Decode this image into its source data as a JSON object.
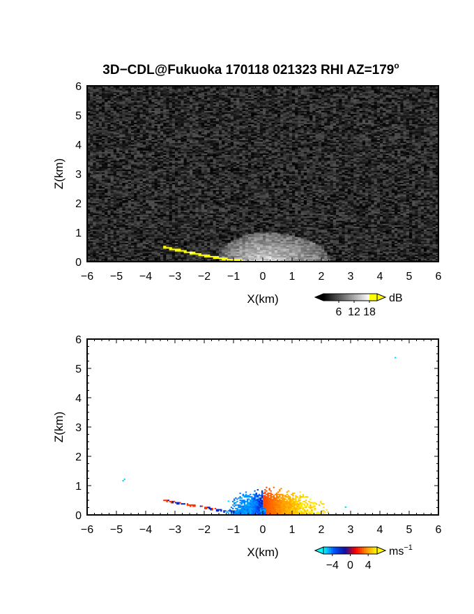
{
  "figure": {
    "title": "3D−CDL@Fukuoka 170118 021323 RHI AZ=179",
    "title_superscript": "o"
  },
  "chart_data": [
    {
      "type": "heatmap",
      "panel": "top",
      "variable": "backscatter",
      "xlabel": "X(km)",
      "ylabel": "Z(km)",
      "xlim": [
        -6,
        6
      ],
      "ylim": [
        0,
        6
      ],
      "xticks": [
        "−6",
        "−5",
        "−4",
        "−3",
        "−2",
        "−1",
        "0",
        "1",
        "2",
        "3",
        "4",
        "5",
        "6"
      ],
      "yticks": [
        "0",
        "1",
        "2",
        "3",
        "4",
        "5",
        "6"
      ],
      "colorbar": {
        "unit": "dB",
        "ticks": [
          "6",
          "12",
          "18"
        ],
        "tick_values": [
          6,
          12,
          18
        ],
        "range": [
          0,
          21
        ],
        "colors": [
          "#000000",
          "#ffffff",
          "#ffff00"
        ]
      },
      "features": [
        {
          "name": "background noise",
          "x_range": [
            -6,
            6
          ],
          "z_range": [
            0,
            6
          ],
          "level_db": [
            0,
            6
          ]
        },
        {
          "name": "near-field fan",
          "x_center": 0,
          "x_range": [
            -1.5,
            2.3
          ],
          "z_max": 1.0,
          "level_db": [
            8,
            16
          ]
        },
        {
          "name": "low-elevation return",
          "points": [
            [
              -3.4,
              0.5
            ],
            [
              -2.8,
              0.38
            ],
            [
              -2.0,
              0.22
            ],
            [
              -1.3,
              0.1
            ],
            [
              -0.6,
              0.02
            ]
          ],
          "level_db": [
            18,
            21
          ]
        }
      ]
    },
    {
      "type": "heatmap",
      "panel": "bottom",
      "variable": "radial velocity",
      "xlabel": "X(km)",
      "ylabel": "Z(km)",
      "xlim": [
        -6,
        6
      ],
      "ylim": [
        0,
        6
      ],
      "xticks": [
        "−6",
        "−5",
        "−4",
        "−3",
        "−2",
        "−1",
        "0",
        "1",
        "2",
        "3",
        "4",
        "5",
        "6"
      ],
      "yticks": [
        "0",
        "1",
        "2",
        "3",
        "4",
        "5",
        "6"
      ],
      "colorbar": {
        "unit": "ms",
        "unit_superscript": "−1",
        "ticks": [
          "−4",
          "0",
          "4"
        ],
        "tick_values": [
          -4,
          0,
          4
        ],
        "range": [
          -6,
          6
        ],
        "colors": [
          "#00ffff",
          "#0050ff",
          "#1010a0",
          "#ff0000",
          "#ff9000",
          "#ffff00"
        ]
      },
      "points": [
        {
          "x": 4.5,
          "z": 5.35,
          "v": -5.5
        },
        {
          "x": -4.75,
          "z": 1.2,
          "v": -5.5
        },
        {
          "x": -4.8,
          "z": 1.15,
          "v": -5.5
        },
        {
          "x": 2.8,
          "z": 0.25,
          "v": -5.5
        },
        {
          "x": -1.2,
          "z": 0.45,
          "v": -5.5
        }
      ],
      "features": [
        {
          "name": "red-blue streak",
          "points": [
            [
              -3.4,
              0.5
            ],
            [
              -2.8,
              0.38
            ],
            [
              -2.0,
              0.25
            ],
            [
              -1.3,
              0.13
            ],
            [
              -0.7,
              0.05
            ]
          ],
          "v_range": [
            -2,
            2
          ]
        },
        {
          "name": "approaching side",
          "x_range": [
            -1.4,
            0
          ],
          "z_max": 0.9,
          "v_range": [
            -6,
            -1
          ]
        },
        {
          "name": "receding side",
          "x_range": [
            0,
            2.3
          ],
          "z_max": 1.0,
          "v_range": [
            1,
            6
          ]
        }
      ]
    }
  ]
}
